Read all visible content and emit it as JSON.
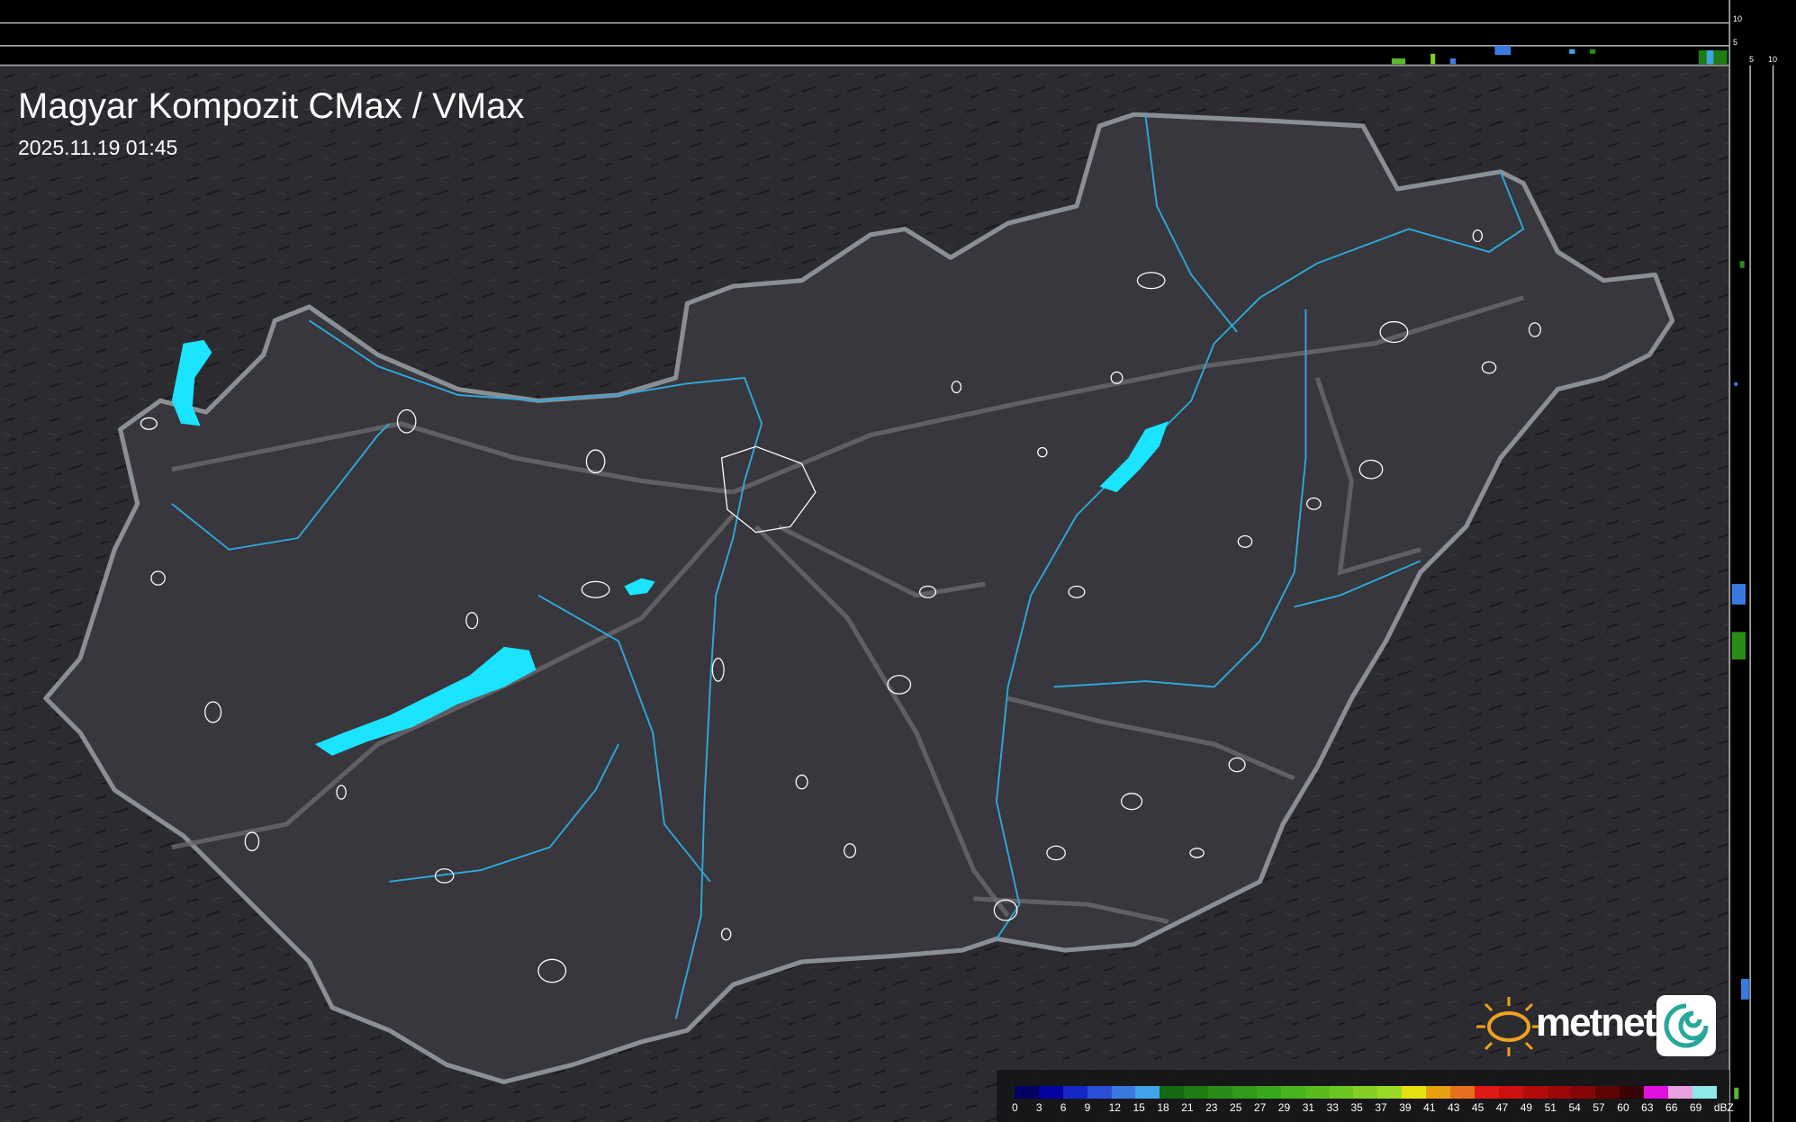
{
  "header": {
    "title": "Magyar Kompozit CMax / VMax",
    "timestamp": "2025.11.19 01:45"
  },
  "side_profiles": {
    "top_axis_labels": [
      "10",
      "5"
    ],
    "right_axis_labels": [
      "5",
      "10"
    ]
  },
  "legend": {
    "unit": "dBZ",
    "labels": [
      "0",
      "3",
      "6",
      "9",
      "12",
      "15",
      "18",
      "21",
      "23",
      "25",
      "27",
      "29",
      "31",
      "33",
      "35",
      "37",
      "39",
      "41",
      "43",
      "45",
      "47",
      "49",
      "51",
      "54",
      "57",
      "60",
      "63",
      "66",
      "69"
    ],
    "colors": [
      "#02025e",
      "#0303a0",
      "#1527c8",
      "#2c4fd8",
      "#3a7ae0",
      "#3fa4e8",
      "#146a10",
      "#1e7c12",
      "#288c16",
      "#309a1a",
      "#3aa81c",
      "#48b41e",
      "#58bc20",
      "#6cc622",
      "#84d024",
      "#98da24",
      "#e6e010",
      "#e6a010",
      "#e67020",
      "#e01818",
      "#cc1010",
      "#b40c0c",
      "#9c0808",
      "#840606",
      "#5e0404",
      "#380202",
      "#e010e0",
      "#e8a0e0",
      "#90e8e8"
    ]
  },
  "logo": {
    "text": "metnet"
  },
  "colors": {
    "background": "#2b2b2e",
    "country_fill": "#3a3a3f",
    "border": "#8a8f96",
    "rivers": "#2fa8d8",
    "lakes": "#1ae4ff",
    "roads": "#6a6a6e"
  }
}
